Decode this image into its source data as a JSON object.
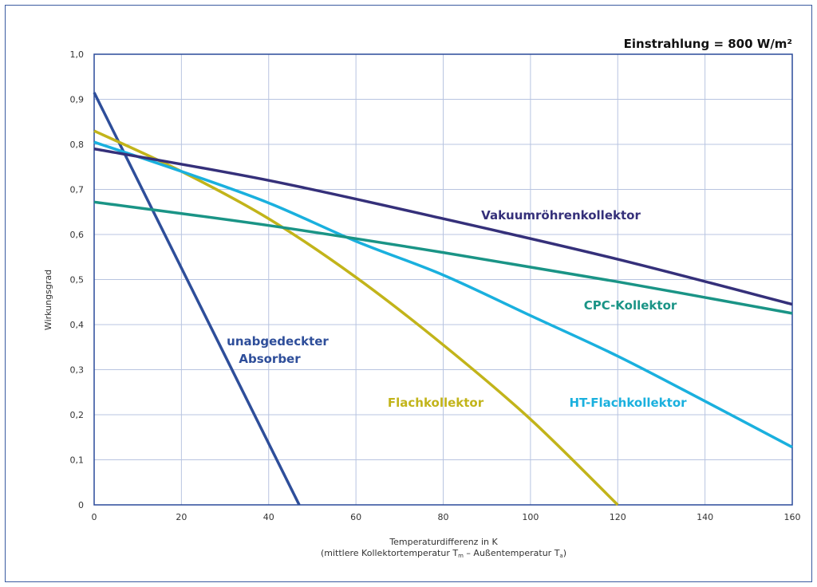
{
  "chart_data": {
    "type": "line",
    "title": "Einstrahlung = 800 W/m²",
    "xlabel": "Temperaturdifferenz in K",
    "xlabel_sub": {
      "prefix": "(mittlere Kollektortemperatur T",
      "sub1": "m",
      "middle": " – Außentemperatur T",
      "sub2": "a",
      "suffix": ")"
    },
    "ylabel": "Wirkungsgrad",
    "xlim": [
      0,
      160
    ],
    "ylim": [
      0,
      1.0
    ],
    "x_ticks": [
      {
        "value": 0,
        "label": "0"
      },
      {
        "value": 20,
        "label": "20"
      },
      {
        "value": 40,
        "label": "40"
      },
      {
        "value": 60,
        "label": "60"
      },
      {
        "value": 80,
        "label": "80"
      },
      {
        "value": 100,
        "label": "100"
      },
      {
        "value": 120,
        "label": "120"
      },
      {
        "value": 140,
        "label": "140"
      },
      {
        "value": 160,
        "label": "160"
      }
    ],
    "y_ticks": [
      {
        "value": 0,
        "label": "0"
      },
      {
        "value": 0.1,
        "label": "0,1"
      },
      {
        "value": 0.2,
        "label": "0,2"
      },
      {
        "value": 0.3,
        "label": "0,3"
      },
      {
        "value": 0.4,
        "label": "0,4"
      },
      {
        "value": 0.5,
        "label": "0,5"
      },
      {
        "value": 0.6,
        "label": "0,6"
      },
      {
        "value": 0.7,
        "label": "0,7"
      },
      {
        "value": 0.8,
        "label": "0,8"
      },
      {
        "value": 0.9,
        "label": "0,9"
      },
      {
        "value": 1.0,
        "label": "1,0"
      }
    ],
    "grid": true,
    "series": [
      {
        "name": "unabgedeckter Absorber",
        "label_lines": [
          "unabgedeckter",
          "Absorber"
        ],
        "color": "#2e4e9a",
        "x": [
          0,
          47
        ],
        "y": [
          0.915,
          0.0
        ]
      },
      {
        "name": "Flachkollektor",
        "label_lines": [
          "Flachkollektor"
        ],
        "color": "#c2b41a",
        "x": [
          0,
          20,
          40,
          60,
          80,
          100,
          120
        ],
        "y": [
          0.83,
          0.74,
          0.635,
          0.505,
          0.355,
          0.19,
          0.0
        ]
      },
      {
        "name": "HT-Flachkollektor",
        "label_lines": [
          "HT-Flachkollektor"
        ],
        "color": "#1ab0de",
        "x": [
          0,
          20,
          40,
          60,
          80,
          100,
          120,
          140,
          160
        ],
        "y": [
          0.805,
          0.74,
          0.67,
          0.585,
          0.51,
          0.42,
          0.33,
          0.23,
          0.128
        ]
      },
      {
        "name": "Vakuumröhrenkollektor",
        "label_lines": [
          "Vakuumröhrenkollektor"
        ],
        "color": "#35307a",
        "x": [
          0,
          40,
          80,
          120,
          160
        ],
        "y": [
          0.79,
          0.72,
          0.635,
          0.545,
          0.445
        ]
      },
      {
        "name": "CPC-Kollektor",
        "label_lines": [
          "CPC-Kollektor"
        ],
        "color": "#1a9486",
        "x": [
          0,
          40,
          80,
          120,
          160
        ],
        "y": [
          0.672,
          0.62,
          0.56,
          0.495,
          0.425
        ]
      }
    ]
  }
}
